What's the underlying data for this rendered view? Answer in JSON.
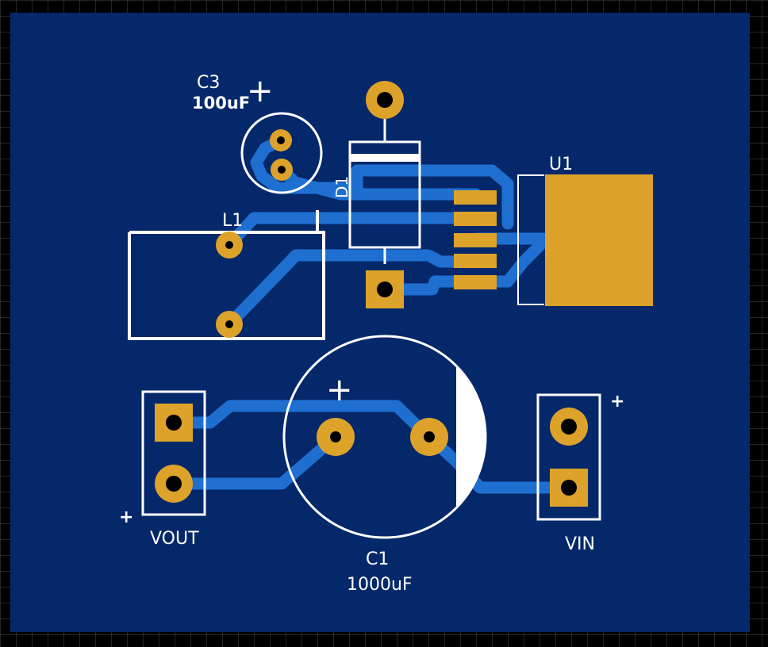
{
  "colors": {
    "background": "#000000",
    "grid": "#4a4a4a",
    "board": "#04286a",
    "trace": "#1f6fd1",
    "pad": "#dca22a",
    "silkscreen": "#ffffff"
  },
  "labels": {
    "c3_ref": "C3",
    "c3_value": "100uF",
    "c3_polarity": "+",
    "d1_ref": "D1",
    "u1_ref": "U1",
    "l1_ref": "L1",
    "c1_ref": "C1",
    "c1_value": "1000uF",
    "c1_polarity": "+",
    "vout_ref": "VOUT",
    "vout_polarity": "+",
    "vin_ref": "VIN",
    "vin_polarity": "+"
  }
}
